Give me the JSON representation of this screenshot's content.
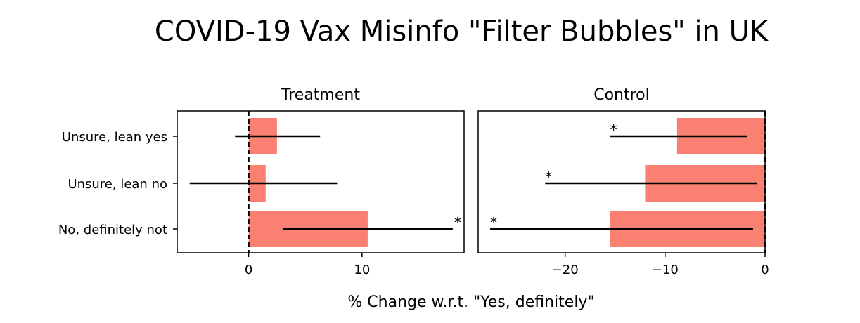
{
  "figure": {
    "title": "COVID-19 Vax Misinfo \"Filter Bubbles\" in UK",
    "xlabel": "% Change w.r.t. \"Yes, definitely\""
  },
  "colors": {
    "bar": "#fa8072",
    "errorbar": "#000000",
    "axis": "#000000"
  },
  "chart_data": [
    {
      "type": "bar",
      "orientation": "horizontal",
      "title": "Treatment",
      "categories": [
        "Unsure, lean yes",
        "Unsure, lean no",
        "No, definitely not"
      ],
      "values": [
        2.5,
        1.5,
        10.5
      ],
      "ci_low": [
        -1.2,
        -5.2,
        3.0
      ],
      "ci_high": [
        6.3,
        7.8,
        18.0
      ],
      "significant": [
        false,
        false,
        true
      ],
      "significance_marker": "*",
      "xlim": [
        -6.3,
        19.0
      ],
      "xticks": [
        0,
        10
      ],
      "reference_line": 0
    },
    {
      "type": "bar",
      "orientation": "horizontal",
      "title": "Control",
      "categories": [
        "Unsure, lean yes",
        "Unsure, lean no",
        "No, definitely not"
      ],
      "values": [
        -8.8,
        -12.0,
        -15.5
      ],
      "ci_low": [
        -15.5,
        -22.0,
        -27.5
      ],
      "ci_high": [
        -1.8,
        -0.8,
        -1.2
      ],
      "significant": [
        true,
        true,
        true
      ],
      "significance_marker": "*",
      "xlim": [
        -28.7,
        0
      ],
      "xticks": [
        -20,
        -10,
        0
      ],
      "reference_line": 0
    }
  ]
}
